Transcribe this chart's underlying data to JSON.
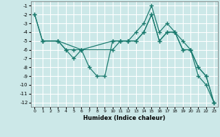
{
  "xlabel": "Humidex (Indice chaleur)",
  "bg_color": "#cce8e8",
  "grid_color": "#ffffff",
  "line_color": "#1a7a6e",
  "xlim": [
    -0.5,
    23.5
  ],
  "ylim": [
    -12.5,
    -0.5
  ],
  "xticks": [
    0,
    1,
    2,
    3,
    4,
    5,
    6,
    7,
    8,
    9,
    10,
    11,
    12,
    13,
    14,
    15,
    16,
    17,
    18,
    19,
    20,
    21,
    22,
    23
  ],
  "yticks": [
    -1,
    -2,
    -3,
    -4,
    -5,
    -6,
    -7,
    -8,
    -9,
    -10,
    -11,
    -12
  ],
  "series": [
    {
      "x": [
        0,
        1,
        3,
        4,
        5,
        6,
        7,
        8,
        9,
        10,
        11,
        12,
        13,
        14,
        15,
        16,
        17,
        18,
        19,
        20,
        21,
        22,
        23
      ],
      "y": [
        -2,
        -5,
        -5,
        -6,
        -6,
        -6,
        -8,
        -9,
        -9,
        -5,
        -5,
        -5,
        -5,
        -4,
        -2,
        -5,
        -4,
        -4,
        -6,
        -6,
        -8,
        -9,
        -12
      ]
    },
    {
      "x": [
        0,
        1,
        3,
        4,
        5,
        6,
        10,
        11,
        12,
        13,
        14,
        15,
        16,
        17,
        18,
        19,
        20,
        21,
        22,
        23
      ],
      "y": [
        -2,
        -5,
        -5,
        -6,
        -7,
        -6,
        -5,
        -5,
        -5,
        -4,
        -3,
        -1,
        -4,
        -3,
        -4,
        -5,
        -6,
        -9,
        -10,
        -12
      ]
    },
    {
      "x": [
        1,
        3,
        6,
        10,
        11,
        12,
        13,
        14,
        15,
        16,
        17,
        18,
        19,
        20,
        21,
        22,
        23
      ],
      "y": [
        -5,
        -5,
        -6,
        -6,
        -5,
        -5,
        -5,
        -4,
        -2,
        -5,
        -4,
        -4,
        -6,
        -6,
        -8,
        -9,
        -12
      ]
    }
  ]
}
